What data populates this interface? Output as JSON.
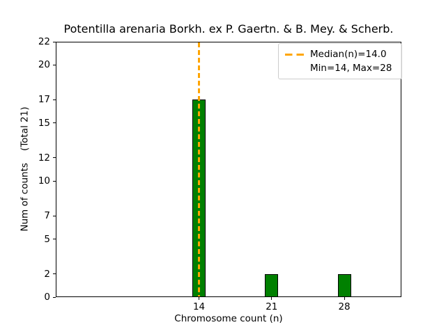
{
  "chart_data": {
    "type": "bar",
    "title": "Potentilla arenaria Borkh. ex P. Gaertn. & B. Mey. & Scherb.",
    "xlabel": "Chromosome count (n)",
    "ylabel": "Num of counts    (Total 21)",
    "categories": [
      14,
      21,
      28
    ],
    "values": [
      17,
      2,
      2
    ],
    "total": 21,
    "median": 14.0,
    "min": 14,
    "max": 28,
    "xlim": [
      0.2,
      33.5
    ],
    "ylim": [
      0,
      22
    ],
    "xticks": [
      14,
      21,
      28
    ],
    "yticks": [
      0,
      2,
      5,
      7,
      10,
      12,
      15,
      17,
      20,
      22
    ],
    "grid": false,
    "bar_color": "#008000",
    "bar_edge_color": "#000000",
    "bar_width_n": 1.27,
    "median_line_color": "#FFA500",
    "legend": {
      "position": "upper right",
      "entries": [
        {
          "label": "Median(n)=14.0",
          "handle": "orange-dashed-line"
        },
        {
          "label": "Min=14, Max=28",
          "handle": "none"
        }
      ]
    }
  }
}
